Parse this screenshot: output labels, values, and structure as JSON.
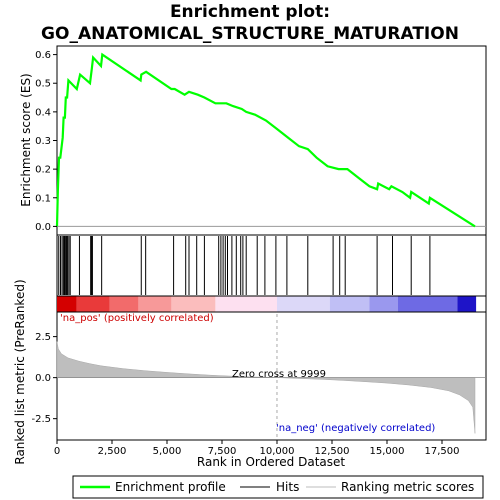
{
  "chart_data": {
    "type": "line",
    "title_line1": "Enrichment plot:",
    "title_line2": "GO_ANATOMICAL_STRUCTURE_MATURATION",
    "xlabel": "Rank in Ordered Dataset",
    "ylabel_top": "Enrichment score (ES)",
    "ylabel_bottom": "Ranked list metric (PreRanked)",
    "xlim": [
      0,
      19500
    ],
    "es_ylim": [
      -0.03,
      0.63
    ],
    "metric_ylim": [
      -3.8,
      4.0
    ],
    "x_ticks": [
      0,
      2500,
      5000,
      7500,
      10000,
      12500,
      15000,
      17500
    ],
    "x_tick_labels": [
      "0",
      "2,500",
      "5,000",
      "7,500",
      "10,000",
      "12,500",
      "15,000",
      "17,500"
    ],
    "es_ticks": [
      0.0,
      0.1,
      0.2,
      0.3,
      0.4,
      0.5,
      0.6
    ],
    "es_tick_labels": [
      "0.0",
      "0.1",
      "0.2",
      "0.3",
      "0.4",
      "0.5",
      "0.6"
    ],
    "metric_ticks": [
      2.5,
      0.0,
      -2.5
    ],
    "metric_tick_labels": [
      "2.5",
      "0.0",
      "-2.5"
    ],
    "zero_cross": 9999,
    "zero_cross_label": "Zero cross at 9999",
    "pos_label": "'na_pos' (positively correlated)",
    "neg_label": "'na_neg' (negatively correlated)",
    "colors": {
      "es_line": "#00ff00",
      "hits": "#000000",
      "metric_fill": "#bebebe",
      "pos_label": "#cc0000",
      "neg_label": "#0000cc",
      "zero_line": "#aaaaaa"
    },
    "es_curve": [
      [
        0,
        0.0
      ],
      [
        40,
        0.13
      ],
      [
        90,
        0.24
      ],
      [
        150,
        0.24
      ],
      [
        260,
        0.31
      ],
      [
        300,
        0.38
      ],
      [
        360,
        0.38
      ],
      [
        400,
        0.45
      ],
      [
        460,
        0.45
      ],
      [
        520,
        0.51
      ],
      [
        900,
        0.48
      ],
      [
        1050,
        0.53
      ],
      [
        1500,
        0.5
      ],
      [
        1580,
        0.55
      ],
      [
        1640,
        0.59
      ],
      [
        2000,
        0.56
      ],
      [
        2060,
        0.6
      ],
      [
        3800,
        0.51
      ],
      [
        3830,
        0.53
      ],
      [
        4050,
        0.54
      ],
      [
        5200,
        0.48
      ],
      [
        5350,
        0.48
      ],
      [
        5800,
        0.46
      ],
      [
        6000,
        0.47
      ],
      [
        6400,
        0.46
      ],
      [
        6700,
        0.45
      ],
      [
        7200,
        0.43
      ],
      [
        7450,
        0.43
      ],
      [
        7700,
        0.43
      ],
      [
        8000,
        0.42
      ],
      [
        8400,
        0.41
      ],
      [
        8600,
        0.4
      ],
      [
        9000,
        0.39
      ],
      [
        9500,
        0.37
      ],
      [
        10000,
        0.34
      ],
      [
        10500,
        0.31
      ],
      [
        11000,
        0.28
      ],
      [
        11400,
        0.27
      ],
      [
        11800,
        0.24
      ],
      [
        12300,
        0.21
      ],
      [
        12800,
        0.2
      ],
      [
        13200,
        0.2
      ],
      [
        13700,
        0.17
      ],
      [
        14200,
        0.14
      ],
      [
        14550,
        0.13
      ],
      [
        14600,
        0.15
      ],
      [
        15100,
        0.13
      ],
      [
        15200,
        0.14
      ],
      [
        15700,
        0.12
      ],
      [
        16050,
        0.1
      ],
      [
        16100,
        0.12
      ],
      [
        16900,
        0.08
      ],
      [
        16950,
        0.1
      ],
      [
        19000,
        0.0
      ]
    ],
    "hits": [
      80,
      160,
      230,
      290,
      340,
      380,
      430,
      480,
      540,
      600,
      1020,
      1530,
      1570,
      1610,
      2030,
      3830,
      4030,
      5300,
      5850,
      6000,
      6350,
      6700,
      7350,
      7450,
      7550,
      7650,
      7750,
      7950,
      8150,
      8350,
      8450,
      8600,
      9100,
      9450,
      9950,
      10450,
      11400,
      12550,
      12850,
      13100,
      14550,
      15250,
      16100,
      16950
    ],
    "metric_curve": [
      [
        0,
        2.2
      ],
      [
        60,
        1.75
      ],
      [
        200,
        1.45
      ],
      [
        500,
        1.2
      ],
      [
        1000,
        1.0
      ],
      [
        1500,
        0.85
      ],
      [
        2000,
        0.72
      ],
      [
        3000,
        0.55
      ],
      [
        4000,
        0.42
      ],
      [
        5000,
        0.32
      ],
      [
        6000,
        0.23
      ],
      [
        7000,
        0.15
      ],
      [
        8000,
        0.09
      ],
      [
        9000,
        0.04
      ],
      [
        9999,
        0.0
      ],
      [
        11000,
        -0.05
      ],
      [
        12000,
        -0.1
      ],
      [
        13000,
        -0.17
      ],
      [
        14000,
        -0.25
      ],
      [
        15000,
        -0.33
      ],
      [
        16000,
        -0.45
      ],
      [
        17000,
        -0.6
      ],
      [
        17800,
        -0.8
      ],
      [
        18300,
        -1.05
      ],
      [
        18700,
        -1.4
      ],
      [
        18900,
        -1.8
      ],
      [
        19000,
        -3.4
      ]
    ],
    "heatmap_bins": [
      [
        "#d40000",
        0,
        900
      ],
      [
        "#e93a3a",
        900,
        2400
      ],
      [
        "#f26b6b",
        2400,
        3700
      ],
      [
        "#f79999",
        3700,
        5200
      ],
      [
        "#fbbdbd",
        5200,
        7200
      ],
      [
        "#fde0f0",
        7200,
        10000
      ],
      [
        "#dcd8f8",
        10000,
        12400
      ],
      [
        "#c0bff5",
        12400,
        14200
      ],
      [
        "#9a98ee",
        14200,
        15500
      ],
      [
        "#6e6ae4",
        15500,
        18200
      ],
      [
        "#1e14c8",
        18200,
        19050
      ]
    ],
    "legend": [
      "Enrichment profile",
      "Hits",
      "Ranking metric scores"
    ]
  }
}
